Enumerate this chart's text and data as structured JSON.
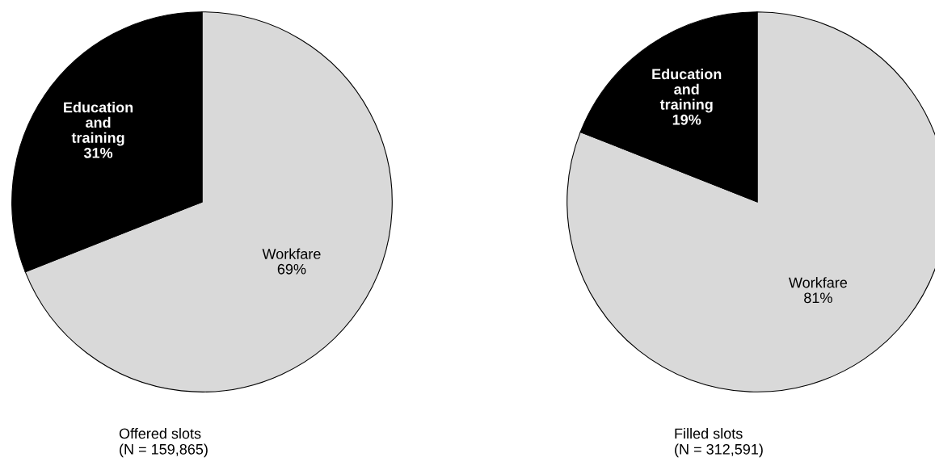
{
  "chart_data": [
    {
      "type": "pie",
      "title": "Offered slots\n(N = 159,865)",
      "categories": [
        "Workfare",
        "Education\nand\ntraining"
      ],
      "values": [
        69,
        31
      ],
      "colors": [
        "#d9d9d9",
        "#000000"
      ],
      "value_labels": [
        "69%",
        "31%"
      ],
      "legend": false
    },
    {
      "type": "pie",
      "title": "Filled slots\n(N = 312,591)",
      "categories": [
        "Workfare",
        "Education\nand\ntraining"
      ],
      "values": [
        81,
        19
      ],
      "colors": [
        "#d9d9d9",
        "#000000"
      ],
      "value_labels": [
        "81%",
        "19%"
      ],
      "legend": false
    }
  ]
}
